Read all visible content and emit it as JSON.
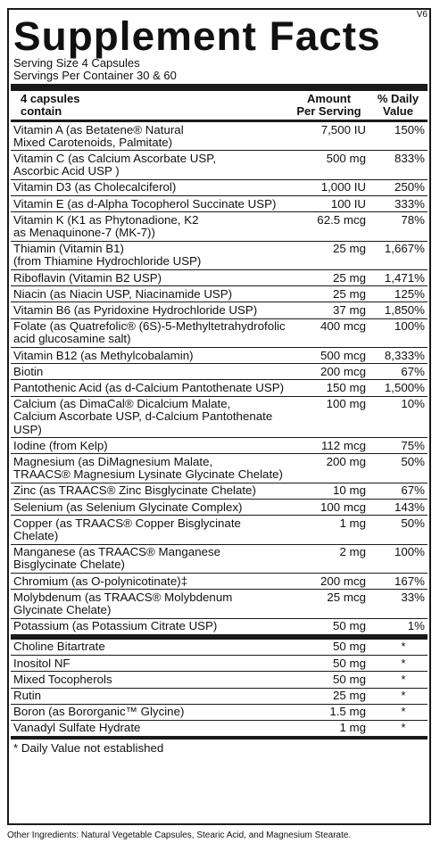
{
  "version": "V6",
  "title": "Supplement Facts",
  "serving_size": "Serving Size 4 Capsules",
  "servings_per_container": "Servings Per Container 30 & 60",
  "header": {
    "col1": "4 capsules\ncontain",
    "col2": "Amount\nPer Serving",
    "col3": "% Daily\nValue"
  },
  "nutrients": [
    {
      "name": "Vitamin A (as Betatene® Natural\nMixed Carotenoids, Palmitate)",
      "amount": "7,500 IU",
      "dv": "150%"
    },
    {
      "name": "Vitamin C (as Calcium Ascorbate USP,\nAscorbic Acid USP  )",
      "amount": "500 mg",
      "dv": "833%"
    },
    {
      "name": "Vitamin D3 (as Cholecalciferol)",
      "amount": "1,000 IU",
      "dv": "250%"
    },
    {
      "name": "Vitamin E (as d-Alpha Tocopherol Succinate USP)",
      "amount": "100 IU",
      "dv": "333%"
    },
    {
      "name": "Vitamin K (K1 as Phytonadione, K2\nas Menaquinone-7 (MK-7))",
      "amount": "62.5 mcg",
      "dv": "78%"
    },
    {
      "name": "Thiamin (Vitamin B1)\n(from Thiamine Hydrochloride USP)",
      "amount": "25 mg",
      "dv": "1,667%"
    },
    {
      "name": "Riboflavin (Vitamin B2 USP)",
      "amount": "25 mg",
      "dv": "1,471%"
    },
    {
      "name": "Niacin (as Niacin USP, Niacinamide USP)",
      "amount": "25 mg",
      "dv": "125%"
    },
    {
      "name": "Vitamin B6 (as Pyridoxine Hydrochloride USP)",
      "amount": "37 mg",
      "dv": "1,850%"
    },
    {
      "name": "Folate (as Quatrefolic® (6S)-5-Methyltetrahydrofolic\nacid glucosamine salt)",
      "amount": "400 mcg",
      "dv": "100%"
    },
    {
      "name": "Vitamin B12 (as Methylcobalamin)",
      "amount": "500 mcg",
      "dv": "8,333%"
    },
    {
      "name": "Biotin",
      "amount": "200 mcg",
      "dv": "67%"
    },
    {
      "name": "Pantothenic Acid (as d-Calcium Pantothenate USP)",
      "amount": "150 mg",
      "dv": "1,500%"
    },
    {
      "name": "Calcium (as DimaCal® Dicalcium Malate,\nCalcium Ascorbate USP, d-Calcium Pantothenate USP)",
      "amount": "100 mg",
      "dv": "10%"
    },
    {
      "name": "Iodine (from Kelp)",
      "amount": "112 mcg",
      "dv": "75%"
    },
    {
      "name": "Magnesium (as DiMagnesium Malate,\nTRAACS® Magnesium Lysinate Glycinate Chelate)",
      "amount": "200 mg",
      "dv": "50%"
    },
    {
      "name": "Zinc (as TRAACS® Zinc Bisglycinate Chelate)",
      "amount": "10 mg",
      "dv": "67%"
    },
    {
      "name": "Selenium (as Selenium Glycinate Complex)",
      "amount": "100 mcg",
      "dv": "143%"
    },
    {
      "name": "Copper (as TRAACS® Copper Bisglycinate Chelate)",
      "amount": "1 mg",
      "dv": "50%"
    },
    {
      "name": "Manganese (as TRAACS® Manganese\nBisglycinate Chelate)",
      "amount": "2 mg",
      "dv": "100%"
    },
    {
      "name": "Chromium (as O-polynicotinate)‡",
      "amount": "200 mcg",
      "dv": "167%"
    },
    {
      "name": "Molybdenum (as TRAACS® Molybdenum\nGlycinate Chelate)",
      "amount": "25 mcg",
      "dv": "33%"
    },
    {
      "name": "Potassium (as Potassium Citrate USP)",
      "amount": "50 mg",
      "dv": "1%"
    }
  ],
  "other_nutrients": [
    {
      "name": "Choline Bitartrate",
      "amount": "50 mg",
      "dv": "*"
    },
    {
      "name": "Inositol NF",
      "amount": "50 mg",
      "dv": "*"
    },
    {
      "name": "Mixed Tocopherols",
      "amount": "50 mg",
      "dv": "*"
    },
    {
      "name": "Rutin",
      "amount": "25 mg",
      "dv": "*"
    },
    {
      "name": "Boron (as Bororganic™ Glycine)",
      "amount": "1.5 mg",
      "dv": "*"
    },
    {
      "name": "Vanadyl Sulfate Hydrate",
      "amount": "1 mg",
      "dv": "*"
    }
  ],
  "footnote": "* Daily Value not established",
  "other_ingredients": "Other Ingredients: Natural Vegetable Capsules, Stearic Acid, and Magnesium Stearate."
}
